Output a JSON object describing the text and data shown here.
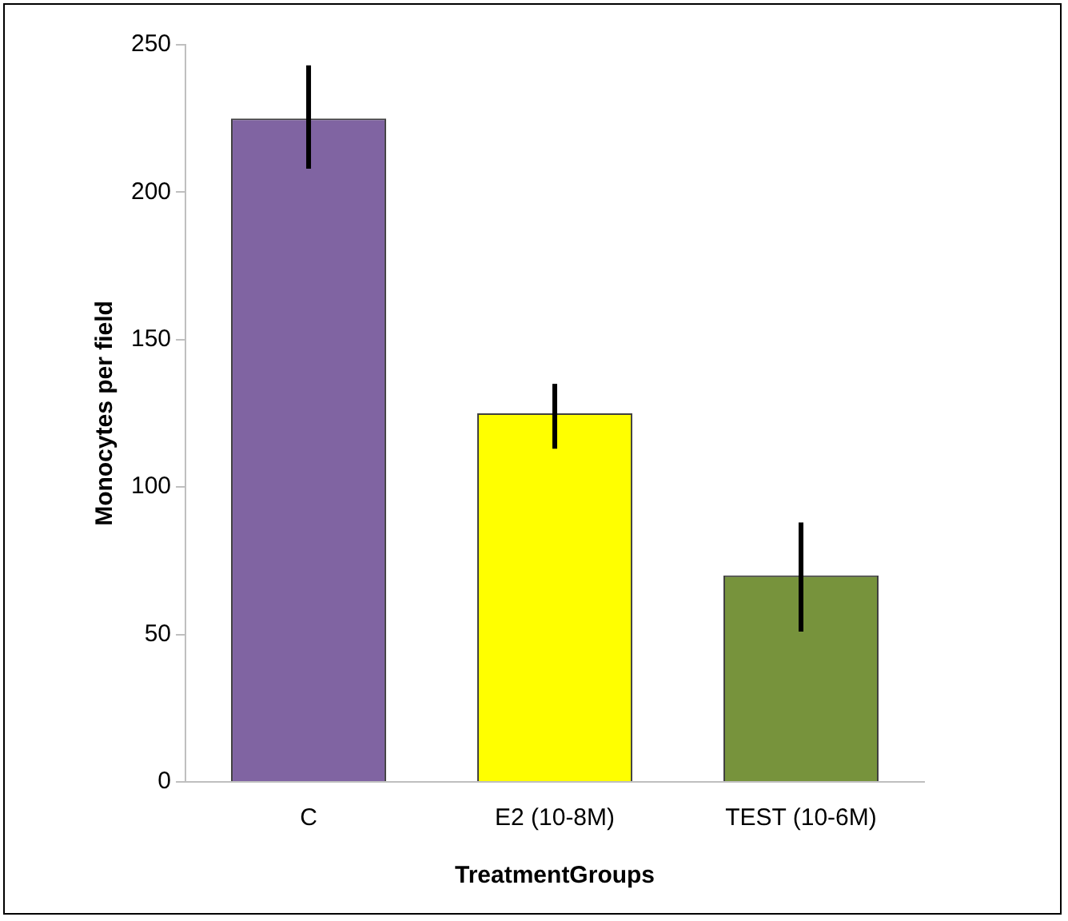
{
  "chart_data": {
    "type": "bar",
    "xlabel": "TreatmentGroups",
    "ylabel": "Monocytes per field",
    "categories": [
      "C",
      "E2 (10-8M)",
      "TEST (10-6M)"
    ],
    "values": [
      225,
      125,
      70
    ],
    "colors": [
      "#8064a2",
      "#ffff00",
      "#77933c"
    ],
    "errors": [
      [
        208,
        243
      ],
      [
        113,
        135
      ],
      [
        51,
        88
      ]
    ],
    "ylim": [
      0,
      250
    ],
    "yticks": [
      0,
      50,
      100,
      150,
      200,
      250
    ],
    "grid": false,
    "legend": false
  }
}
